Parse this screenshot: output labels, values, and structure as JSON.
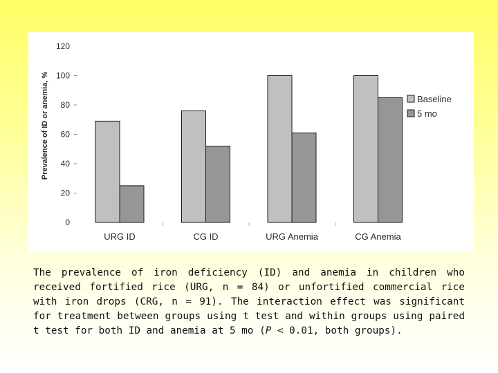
{
  "caption": {
    "text": "The prevalence of iron deficiency (ID) and anemia in children who received fortified rice (URG, n = 84) or unfortified commercial rice with iron drops (CRG, n = 91). The interaction effect was significant for treatment between groups using t test and within groups using paired t test for both ID and anemia at 5 mo (",
    "p_symbol": "P",
    "text_end": " < 0.01, both groups)."
  },
  "chart_data": {
    "type": "bar",
    "title": "",
    "xlabel": "",
    "ylabel": "Prevalence of ID or anemia, %",
    "ylim": [
      0,
      120
    ],
    "yticks": [
      0,
      20,
      40,
      60,
      80,
      100,
      120
    ],
    "categories": [
      "URG ID",
      "CG ID",
      "URG Anemia",
      "CG Anemia"
    ],
    "series": [
      {
        "name": "Baseline",
        "values": [
          69,
          76,
          100,
          100
        ],
        "color": "#c0c0c0"
      },
      {
        "name": "5 mo",
        "values": [
          25,
          52,
          61,
          85
        ],
        "color": "#969696"
      }
    ],
    "legend_position": "right",
    "grid": false
  }
}
